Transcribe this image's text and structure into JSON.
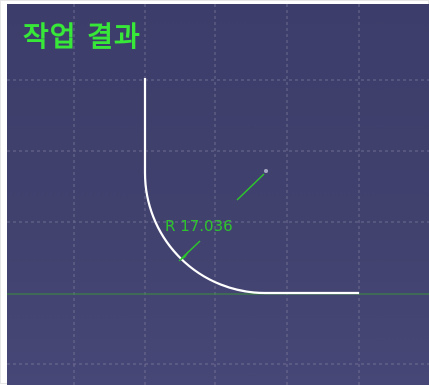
{
  "title": "작업 결과",
  "dimension": {
    "label": "R 17.036"
  },
  "colors": {
    "background": "#41416e",
    "grid": "#7b7b9a",
    "axis": "#3a8f3a",
    "geometry": "#ffffff",
    "dimension": "#2dc42d",
    "title": "#38e838"
  },
  "icons": {
    "center_point": "center-point-icon",
    "dimension_arrow": "arrow-icon"
  }
}
